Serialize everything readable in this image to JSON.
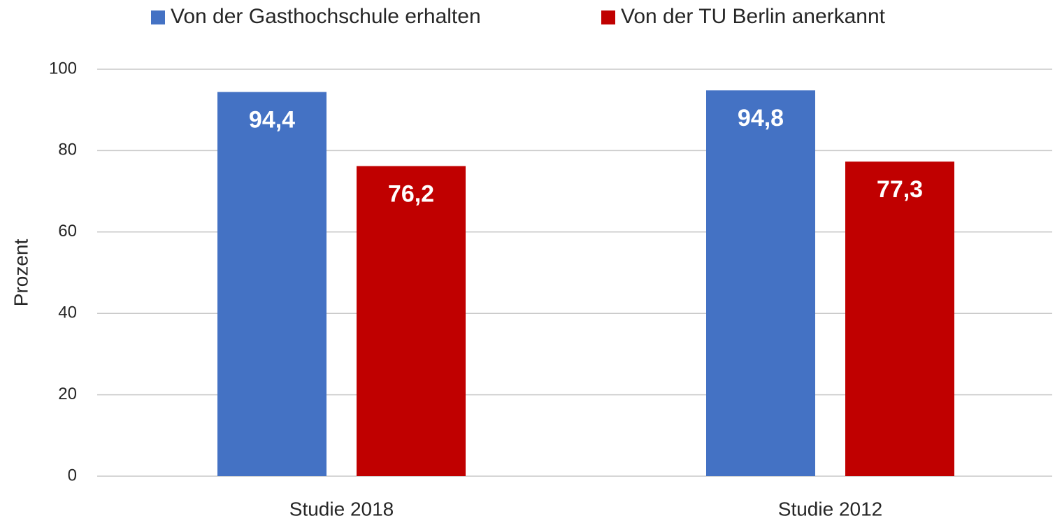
{
  "chart_data": {
    "type": "bar",
    "y_label": "Prozent",
    "categories": [
      "Studie 2018",
      "Studie 2012"
    ],
    "series": [
      {
        "name": "Von der Gasthochschule erhalten",
        "color": "#4472c4",
        "values": [
          94.4,
          94.8
        ],
        "value_labels": [
          "94,4",
          "94,8"
        ]
      },
      {
        "name": "Von der TU Berlin anerkannt",
        "color": "#c00000",
        "values": [
          76.2,
          77.3
        ],
        "value_labels": [
          "76,2",
          "77,3"
        ]
      }
    ],
    "ylim": [
      0,
      100
    ],
    "yticks": [
      0,
      20,
      40,
      60,
      80,
      100
    ],
    "grid": true,
    "legend": "top"
  }
}
